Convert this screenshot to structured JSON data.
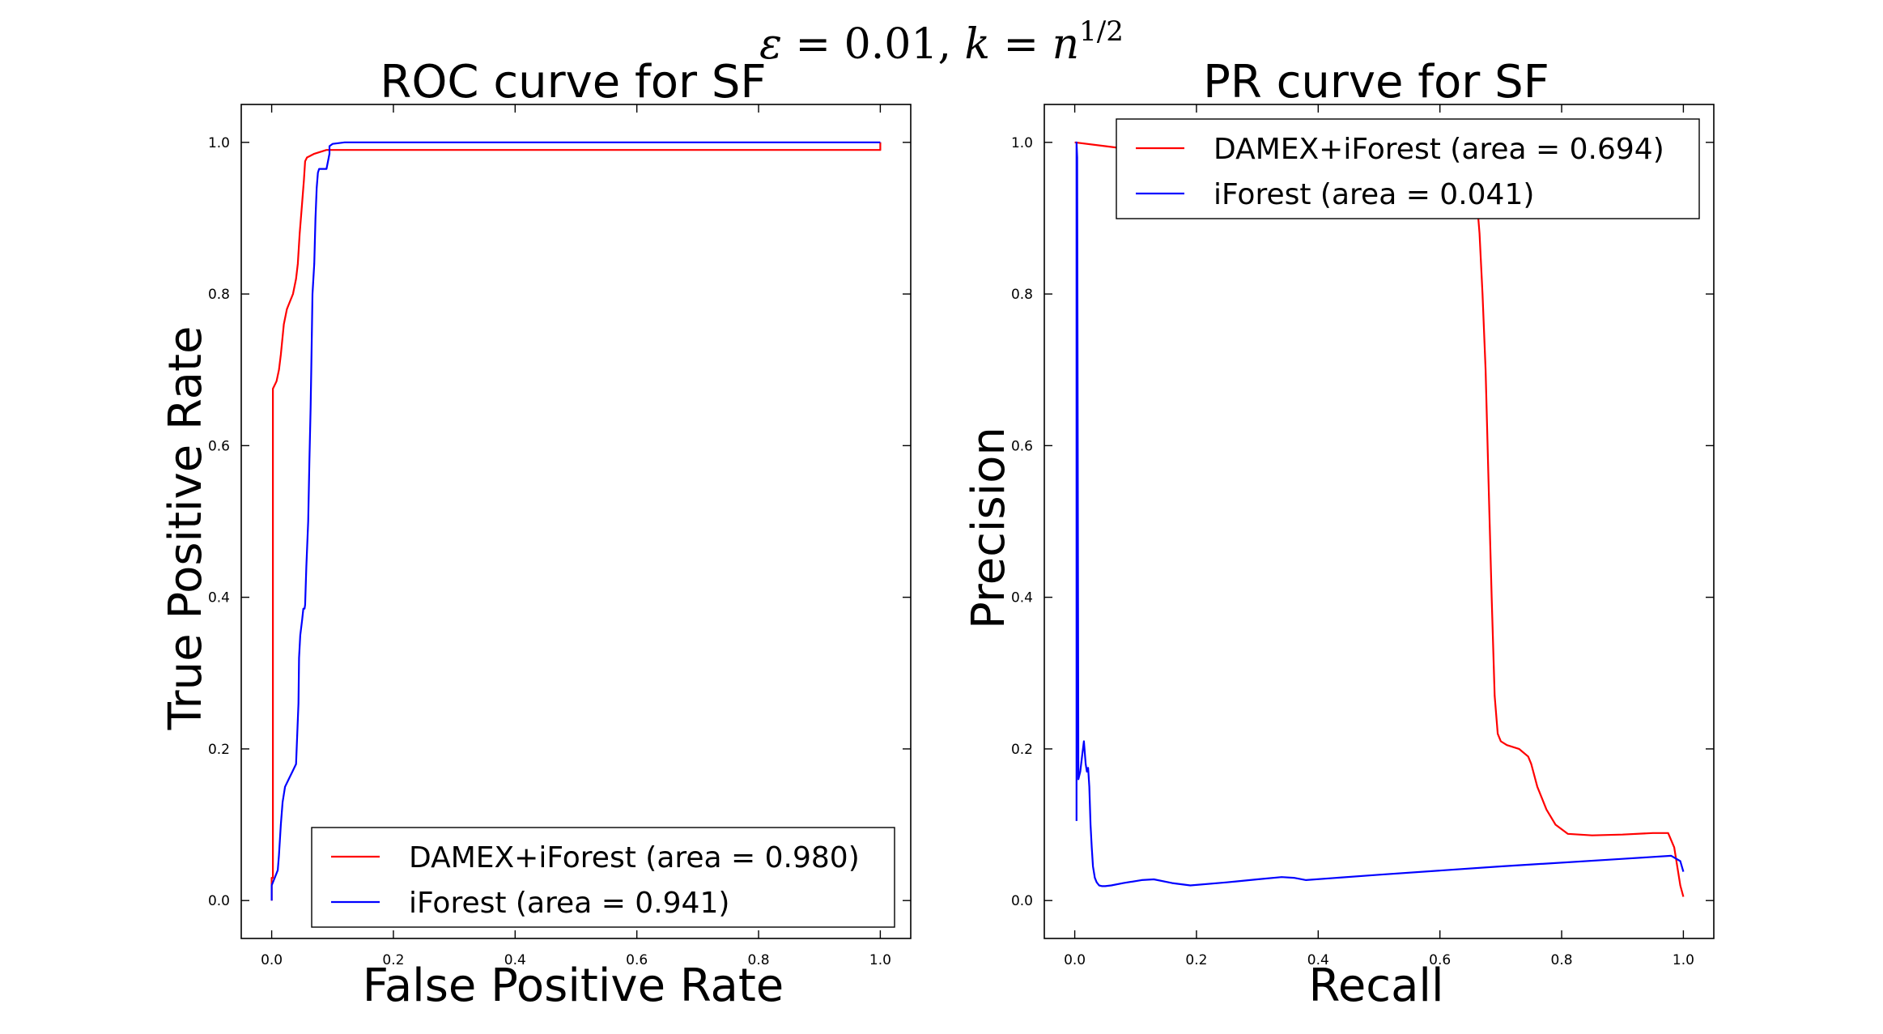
{
  "figure": {
    "suptitle": "ε = 0.01, k = n^{1/2}",
    "suptitle_parts": {
      "eps": "ε",
      "eq1": " = 0.01, ",
      "k": "k",
      "eq2": " = ",
      "n": "n",
      "exp": "1/2"
    }
  },
  "colors": {
    "red": "#ff0000",
    "blue": "#0000ff",
    "axis": "#000000",
    "background": "#ffffff"
  },
  "chart_data": [
    {
      "type": "line",
      "title": "ROC curve for SF",
      "xlabel": "False Positive Rate",
      "ylabel": "True Positive Rate",
      "xlim": [
        -0.05,
        1.05
      ],
      "ylim": [
        -0.05,
        1.05
      ],
      "xticks": [
        0.0,
        0.2,
        0.4,
        0.6,
        0.8,
        1.0
      ],
      "xtick_labels": [
        "0.0",
        "0.2",
        "0.4",
        "0.6",
        "0.8",
        "1.0"
      ],
      "yticks": [
        0.0,
        0.2,
        0.4,
        0.6,
        0.8,
        1.0
      ],
      "ytick_labels": [
        "0.0",
        "0.2",
        "0.4",
        "0.6",
        "0.8",
        "1.0"
      ],
      "grid": false,
      "legend_position": "lower-right",
      "series": [
        {
          "name": "DAMEX+iForest (area = 0.980)",
          "color": "#ff0000",
          "x": [
            0.0,
            0.0,
            0.002,
            0.002,
            0.008,
            0.012,
            0.015,
            0.02,
            0.025,
            0.03,
            0.035,
            0.04,
            0.043,
            0.046,
            0.05,
            0.053,
            0.055,
            0.058,
            0.07,
            0.09,
            0.1,
            0.2,
            0.5,
            0.8,
            1.0,
            1.0
          ],
          "y": [
            0.0,
            0.03,
            0.03,
            0.675,
            0.685,
            0.7,
            0.72,
            0.76,
            0.78,
            0.79,
            0.8,
            0.82,
            0.84,
            0.88,
            0.92,
            0.95,
            0.975,
            0.98,
            0.985,
            0.99,
            0.99,
            0.99,
            0.99,
            0.99,
            0.99,
            1.0
          ]
        },
        {
          "name": "iForest (area = 0.941)",
          "color": "#0000ff",
          "x": [
            0.0,
            0.0,
            0.005,
            0.01,
            0.012,
            0.015,
            0.018,
            0.022,
            0.028,
            0.034,
            0.04,
            0.042,
            0.044,
            0.045,
            0.047,
            0.05,
            0.052,
            0.054,
            0.055,
            0.057,
            0.06,
            0.062,
            0.064,
            0.065,
            0.067,
            0.07,
            0.072,
            0.074,
            0.076,
            0.078,
            0.08,
            0.085,
            0.09,
            0.095,
            0.095,
            0.1,
            0.12,
            0.2,
            0.5,
            1.0
          ],
          "y": [
            0.0,
            0.02,
            0.03,
            0.04,
            0.06,
            0.1,
            0.13,
            0.15,
            0.16,
            0.17,
            0.18,
            0.22,
            0.26,
            0.32,
            0.35,
            0.37,
            0.385,
            0.385,
            0.39,
            0.44,
            0.5,
            0.58,
            0.65,
            0.7,
            0.8,
            0.84,
            0.9,
            0.94,
            0.96,
            0.965,
            0.965,
            0.965,
            0.965,
            0.985,
            0.995,
            0.998,
            1.0,
            1.0,
            1.0,
            1.0
          ]
        }
      ]
    },
    {
      "type": "line",
      "title": "PR curve for SF",
      "xlabel": "Recall",
      "ylabel": "Precision",
      "xlim": [
        -0.05,
        1.05
      ],
      "ylim": [
        -0.05,
        1.05
      ],
      "xticks": [
        0.0,
        0.2,
        0.4,
        0.6,
        0.8,
        1.0
      ],
      "xtick_labels": [
        "0.0",
        "0.2",
        "0.4",
        "0.6",
        "0.8",
        "1.0"
      ],
      "yticks": [
        0.0,
        0.2,
        0.4,
        0.6,
        0.8,
        1.0
      ],
      "ytick_labels": [
        "0.0",
        "0.2",
        "0.4",
        "0.6",
        "0.8",
        "1.0"
      ],
      "grid": false,
      "legend_position": "upper-right",
      "series": [
        {
          "name": "DAMEX+iForest (area = 0.694)",
          "color": "#ff0000",
          "x": [
            0.0,
            0.05,
            0.1,
            0.2,
            0.3,
            0.4,
            0.5,
            0.6,
            0.64,
            0.66,
            0.665,
            0.67,
            0.675,
            0.68,
            0.685,
            0.69,
            0.695,
            0.7,
            0.71,
            0.73,
            0.745,
            0.75,
            0.76,
            0.775,
            0.79,
            0.81,
            0.85,
            0.9,
            0.95,
            0.975,
            0.985,
            0.995,
            1.0
          ],
          "y": [
            1.0,
            0.995,
            0.99,
            0.98,
            0.975,
            0.97,
            0.96,
            0.95,
            0.94,
            0.93,
            0.88,
            0.8,
            0.7,
            0.55,
            0.4,
            0.27,
            0.22,
            0.21,
            0.205,
            0.2,
            0.19,
            0.18,
            0.15,
            0.12,
            0.1,
            0.088,
            0.086,
            0.087,
            0.089,
            0.089,
            0.07,
            0.02,
            0.005
          ]
        },
        {
          "name": "iForest (area = 0.041)",
          "color": "#0000ff",
          "x": [
            0.003,
            0.003,
            0.004,
            0.006,
            0.009,
            0.012,
            0.015,
            0.018,
            0.02,
            0.022,
            0.024,
            0.026,
            0.028,
            0.03,
            0.033,
            0.036,
            0.04,
            0.045,
            0.05,
            0.06,
            0.08,
            0.11,
            0.13,
            0.16,
            0.19,
            0.25,
            0.3,
            0.34,
            0.36,
            0.38,
            0.5,
            0.7,
            0.9,
            0.98,
            0.995,
            1.0
          ],
          "y": [
            0.105,
            1.0,
            0.98,
            0.16,
            0.17,
            0.19,
            0.21,
            0.18,
            0.17,
            0.175,
            0.15,
            0.1,
            0.07,
            0.045,
            0.03,
            0.024,
            0.02,
            0.019,
            0.019,
            0.02,
            0.023,
            0.027,
            0.028,
            0.023,
            0.02,
            0.024,
            0.028,
            0.031,
            0.03,
            0.027,
            0.034,
            0.045,
            0.055,
            0.059,
            0.052,
            0.038
          ]
        }
      ]
    }
  ]
}
